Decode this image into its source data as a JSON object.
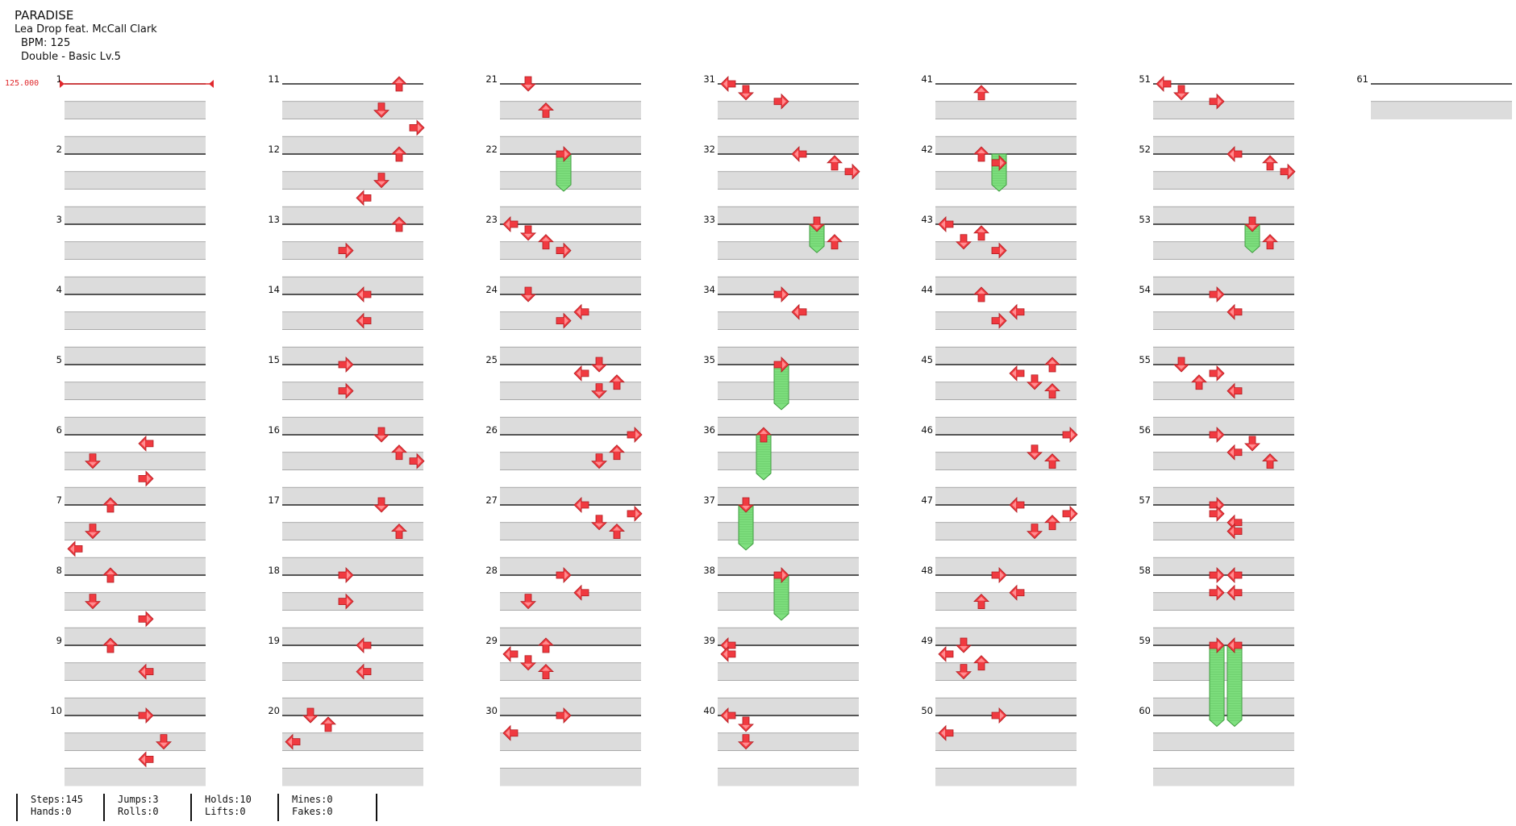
{
  "song": {
    "title": "PARADISE",
    "artist": "Lea Drop feat. McCall Clark",
    "bpm_label": "BPM: 125",
    "difficulty_label": "Double - Basic Lv.5"
  },
  "bpm_marker": {
    "label": "125.000",
    "start_measure": 1,
    "length_beats": 4
  },
  "colors": {
    "arrow": "#f03a40",
    "hold": "#7fe07f",
    "hold_edge": "#3c9a3c",
    "lane": "#dcdcdc",
    "bpm": "#e0282c"
  },
  "stats": {
    "steps": "Steps:145",
    "hands": "Hands:0",
    "jumps": "Jumps:3",
    "rolls": "Rolls:0",
    "holds": "Holds:10",
    "lifts": "Lifts:0",
    "mines": "Mines:0",
    "fakes": "Fakes:0"
  },
  "chart": {
    "total_measures": 61,
    "measures_per_column": 10,
    "lanes": 8,
    "notes": [
      [
        6,
        0.5,
        4,
        "left"
      ],
      [
        6,
        1.5,
        1,
        "down"
      ],
      [
        6,
        2.5,
        4,
        "right"
      ],
      [
        7,
        0,
        2,
        "up"
      ],
      [
        7,
        1.5,
        1,
        "down"
      ],
      [
        7,
        2.5,
        0,
        "left"
      ],
      [
        8,
        0,
        2,
        "up"
      ],
      [
        8,
        1.5,
        1,
        "down"
      ],
      [
        8,
        2.5,
        4,
        "right"
      ],
      [
        9,
        0,
        2,
        "up"
      ],
      [
        9,
        1.5,
        4,
        "left"
      ],
      [
        10,
        0,
        4,
        "right"
      ],
      [
        10,
        1.5,
        5,
        "down"
      ],
      [
        10,
        2.5,
        4,
        "left"
      ],
      [
        11,
        0,
        6,
        "up"
      ],
      [
        11,
        1.5,
        5,
        "down"
      ],
      [
        11,
        2.5,
        7,
        "right"
      ],
      [
        12,
        0,
        6,
        "up"
      ],
      [
        12,
        1.5,
        5,
        "down"
      ],
      [
        12,
        2.5,
        4,
        "left"
      ],
      [
        13,
        0,
        6,
        "up"
      ],
      [
        13,
        1.5,
        3,
        "right"
      ],
      [
        14,
        0,
        4,
        "left"
      ],
      [
        14,
        1.5,
        4,
        "left"
      ],
      [
        15,
        0,
        3,
        "right"
      ],
      [
        15,
        1.5,
        3,
        "right"
      ],
      [
        16,
        0,
        5,
        "down"
      ],
      [
        16,
        1,
        6,
        "up"
      ],
      [
        16,
        1.5,
        7,
        "right"
      ],
      [
        17,
        0,
        5,
        "down"
      ],
      [
        17,
        1.5,
        6,
        "up"
      ],
      [
        18,
        0,
        3,
        "right"
      ],
      [
        18,
        1.5,
        3,
        "right"
      ],
      [
        19,
        0,
        4,
        "left"
      ],
      [
        19,
        1.5,
        4,
        "left"
      ],
      [
        20,
        0,
        1,
        "down"
      ],
      [
        20,
        0.5,
        2,
        "up"
      ],
      [
        20,
        1.5,
        0,
        "left"
      ],
      [
        21,
        0,
        1,
        "down"
      ],
      [
        21,
        1.5,
        2,
        "up"
      ],
      [
        22,
        0,
        3,
        "right"
      ],
      [
        23,
        0,
        0,
        "left"
      ],
      [
        23,
        0.5,
        1,
        "down"
      ],
      [
        23,
        1,
        2,
        "up"
      ],
      [
        23,
        1.5,
        3,
        "right"
      ],
      [
        24,
        0,
        1,
        "down"
      ],
      [
        24,
        1,
        4,
        "left"
      ],
      [
        24,
        1.5,
        3,
        "right"
      ],
      [
        25,
        0,
        5,
        "down"
      ],
      [
        25,
        0.5,
        4,
        "left"
      ],
      [
        25,
        1,
        6,
        "up"
      ],
      [
        25,
        1.5,
        5,
        "down"
      ],
      [
        26,
        0,
        7,
        "right"
      ],
      [
        26,
        1,
        6,
        "up"
      ],
      [
        26,
        1.5,
        5,
        "down"
      ],
      [
        27,
        0,
        4,
        "left"
      ],
      [
        27,
        0.5,
        7,
        "right"
      ],
      [
        27,
        1,
        5,
        "down"
      ],
      [
        27,
        1.5,
        6,
        "up"
      ],
      [
        28,
        0,
        3,
        "right"
      ],
      [
        28,
        1,
        4,
        "left"
      ],
      [
        28,
        1.5,
        1,
        "down"
      ],
      [
        29,
        0,
        2,
        "up"
      ],
      [
        29,
        0.5,
        0,
        "left"
      ],
      [
        29,
        1,
        1,
        "down"
      ],
      [
        29,
        1.5,
        2,
        "up"
      ],
      [
        30,
        0,
        3,
        "right"
      ],
      [
        30,
        1,
        0,
        "left"
      ],
      [
        31,
        0,
        0,
        "left"
      ],
      [
        31,
        0.5,
        1,
        "down"
      ],
      [
        31,
        1,
        3,
        "right"
      ],
      [
        32,
        0,
        4,
        "left"
      ],
      [
        32,
        0.5,
        6,
        "up"
      ],
      [
        32,
        1,
        7,
        "right"
      ],
      [
        33,
        0,
        5,
        "down"
      ],
      [
        33,
        1,
        6,
        "up"
      ],
      [
        34,
        0,
        3,
        "right"
      ],
      [
        34,
        1,
        4,
        "left"
      ],
      [
        35,
        0,
        3,
        "right"
      ],
      [
        36,
        0,
        2,
        "up"
      ],
      [
        37,
        0,
        1,
        "down"
      ],
      [
        38,
        0,
        3,
        "right"
      ],
      [
        39,
        0,
        0,
        "left"
      ],
      [
        39,
        0.5,
        0,
        "left"
      ],
      [
        40,
        0,
        0,
        "left"
      ],
      [
        40,
        0.5,
        1,
        "down"
      ],
      [
        40,
        1.5,
        1,
        "down"
      ],
      [
        41,
        0.5,
        2,
        "up"
      ],
      [
        42,
        0,
        2,
        "up"
      ],
      [
        42,
        0.5,
        3,
        "right"
      ],
      [
        43,
        0,
        0,
        "left"
      ],
      [
        43,
        0.5,
        2,
        "up"
      ],
      [
        43,
        1,
        1,
        "down"
      ],
      [
        43,
        1.5,
        3,
        "right"
      ],
      [
        44,
        0,
        2,
        "up"
      ],
      [
        44,
        1,
        4,
        "left"
      ],
      [
        44,
        1.5,
        3,
        "right"
      ],
      [
        45,
        0,
        6,
        "up"
      ],
      [
        45,
        0.5,
        4,
        "left"
      ],
      [
        45,
        1,
        5,
        "down"
      ],
      [
        45,
        1.5,
        6,
        "up"
      ],
      [
        46,
        0,
        7,
        "right"
      ],
      [
        46,
        1,
        5,
        "down"
      ],
      [
        46,
        1.5,
        6,
        "up"
      ],
      [
        47,
        0,
        4,
        "left"
      ],
      [
        47,
        0.5,
        7,
        "right"
      ],
      [
        47,
        1,
        6,
        "up"
      ],
      [
        47,
        1.5,
        5,
        "down"
      ],
      [
        48,
        0,
        3,
        "right"
      ],
      [
        48,
        1,
        4,
        "left"
      ],
      [
        48,
        1.5,
        2,
        "up"
      ],
      [
        49,
        0,
        1,
        "down"
      ],
      [
        49,
        0.5,
        0,
        "left"
      ],
      [
        49,
        1,
        2,
        "up"
      ],
      [
        49,
        1.5,
        1,
        "down"
      ],
      [
        50,
        0,
        3,
        "right"
      ],
      [
        50,
        1,
        0,
        "left"
      ],
      [
        51,
        0,
        0,
        "left"
      ],
      [
        51,
        0.5,
        1,
        "down"
      ],
      [
        51,
        1,
        3,
        "right"
      ],
      [
        52,
        0,
        4,
        "left"
      ],
      [
        52,
        0.5,
        6,
        "up"
      ],
      [
        52,
        1,
        7,
        "right"
      ],
      [
        53,
        0,
        5,
        "down"
      ],
      [
        53,
        1,
        6,
        "up"
      ],
      [
        54,
        0,
        3,
        "right"
      ],
      [
        54,
        1,
        4,
        "left"
      ],
      [
        55,
        0,
        1,
        "down"
      ],
      [
        55,
        0.5,
        3,
        "right"
      ],
      [
        55,
        1,
        2,
        "up"
      ],
      [
        55,
        1.5,
        4,
        "left"
      ],
      [
        56,
        0,
        3,
        "right"
      ],
      [
        56,
        0.5,
        5,
        "down"
      ],
      [
        56,
        1,
        4,
        "left"
      ],
      [
        56,
        1.5,
        6,
        "up"
      ],
      [
        57,
        0,
        3,
        "right"
      ],
      [
        57,
        0.5,
        3,
        "right"
      ],
      [
        57,
        1,
        4,
        "left"
      ],
      [
        57,
        1.5,
        4,
        "left"
      ],
      [
        58,
        0,
        3,
        "right"
      ],
      [
        58,
        0,
        4,
        "left"
      ],
      [
        58,
        1,
        3,
        "right"
      ],
      [
        58,
        1,
        4,
        "left"
      ],
      [
        59,
        0,
        3,
        "right"
      ],
      [
        59,
        0,
        4,
        "left"
      ]
    ],
    "holds": [
      [
        22,
        0,
        22,
        1.75,
        3
      ],
      [
        33,
        0,
        33,
        1.25,
        5
      ],
      [
        35,
        0,
        35,
        2.2,
        3
      ],
      [
        36,
        0,
        36,
        2.2,
        2
      ],
      [
        37,
        0,
        37,
        2.2,
        1
      ],
      [
        38,
        0,
        38,
        2.2,
        3
      ],
      [
        42,
        0,
        42,
        1.75,
        3
      ],
      [
        53,
        0,
        53,
        1.25,
        5
      ],
      [
        59,
        0,
        60,
        0.25,
        3
      ],
      [
        59,
        0,
        60,
        0.25,
        4
      ]
    ]
  }
}
